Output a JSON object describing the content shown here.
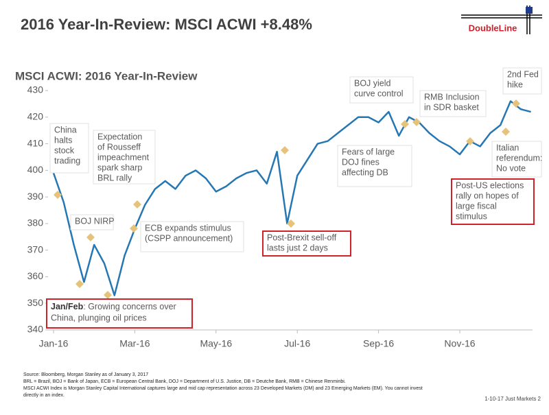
{
  "header": {
    "title": "2016 Year-In-Review: MSCI ACWI +8.48%",
    "logo": "DoubleLine"
  },
  "chart_data": {
    "type": "line",
    "title": "MSCI ACWI: 2016 Year-In-Review",
    "categories": [
      "Jan-16",
      null,
      null,
      null,
      null,
      null,
      null,
      null,
      "Mar-16",
      null,
      null,
      null,
      null,
      null,
      null,
      null,
      "May-16",
      null,
      null,
      null,
      null,
      null,
      null,
      null,
      "Jul-16",
      null,
      null,
      null,
      null,
      null,
      null,
      null,
      "Sep-16",
      null,
      null,
      null,
      null,
      null,
      null,
      null,
      "Nov-16",
      null,
      null,
      null,
      null,
      null,
      null,
      null
    ],
    "series": [
      {
        "name": "MSCI ACWI",
        "color": "#2477b3",
        "values": [
          399,
          388,
          372,
          358,
          372,
          365,
          353,
          368,
          378,
          387,
          393,
          396,
          393,
          398,
          400,
          397,
          392,
          394,
          397,
          399,
          400,
          395,
          407,
          380,
          398,
          404,
          410,
          411,
          414,
          417,
          420,
          420,
          418,
          422,
          413,
          420,
          418,
          414,
          411,
          409,
          406,
          411,
          409,
          414,
          417,
          426,
          423,
          422
        ]
      }
    ],
    "ylim": [
      340,
      430
    ],
    "yticks": [
      340,
      350,
      360,
      370,
      380,
      390,
      400,
      410,
      420,
      430
    ],
    "annotations": [
      [
        "China",
        "halts",
        "stock",
        "trading"
      ],
      [
        "Expectation",
        "of Rousseff",
        "impeachment",
        "spark sharp",
        "BRL rally"
      ],
      [
        "BOJ NIRP"
      ],
      [
        "ECB expands stimulus",
        "(CSPP announcement)"
      ],
      [
        "Post-Brexit sell-off",
        "lasts just 2 days"
      ],
      [
        "BOJ yield",
        "curve control"
      ],
      [
        "Fears of large",
        "DOJ fines",
        "affecting DB"
      ],
      [
        "RMB Inclusion",
        "in SDR basket"
      ],
      [
        "2nd Fed",
        "hike"
      ],
      [
        "Italian",
        "referendum:",
        "No vote"
      ],
      [
        "Post-US elections",
        "rally on hopes of",
        "large fiscal",
        "stimulus"
      ],
      [
        "Jan/Feb",
        ": Growing concerns over",
        "China, plunging oil prices"
      ]
    ]
  },
  "footer": {
    "notes": [
      "Source: Bloomberg, Morgan Stanley as of January 3, 2017",
      "BRL = Brazil, BOJ = Bank of Japan, ECB = European Central Bank, DOJ = Department of U.S. Justice, DB = Deutche Bank, RMB = Chinese Renminbi.",
      "MSCI ACWI Index is Morgan Stanley Capital International captures large and mid cap representation across 23 Developed Markets (DM) and 23 Emerging Markets (EM). You cannot invest",
      "directly in an index."
    ],
    "page": "1-10-17 Just Markets  2"
  }
}
